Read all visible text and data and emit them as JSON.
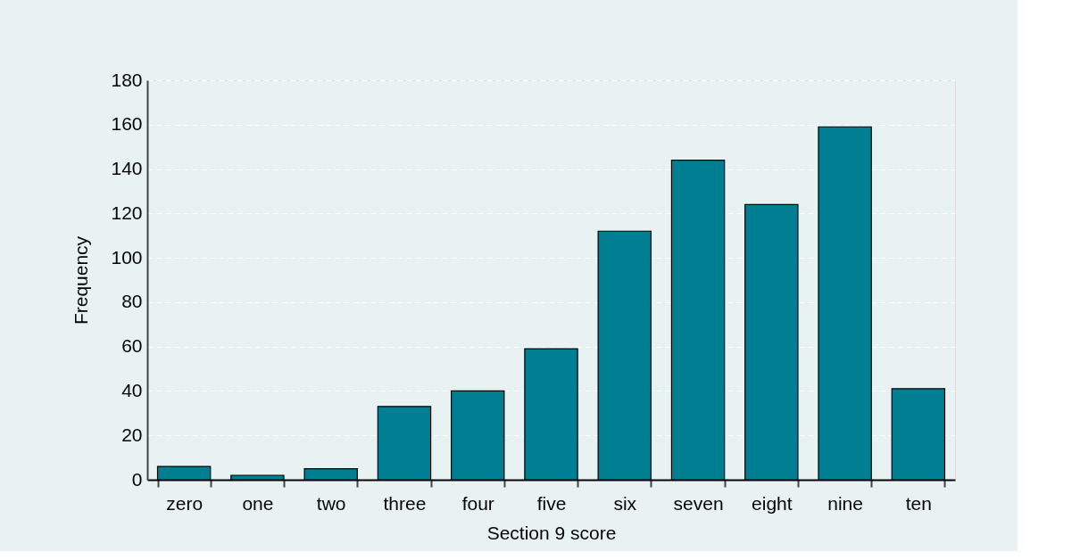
{
  "chart_data": {
    "type": "bar",
    "xlabel": "Section 9 score",
    "ylabel": "Frequency",
    "categories": [
      "zero",
      "one",
      "two",
      "three",
      "four",
      "five",
      "six",
      "seven",
      "eight",
      "nine",
      "ten"
    ],
    "values": [
      6,
      2,
      5,
      33,
      40,
      59,
      112,
      144,
      124,
      159,
      41
    ],
    "color": "#007f93",
    "ylim": [
      0,
      180
    ],
    "yticks": [
      0,
      20,
      40,
      60,
      80,
      100,
      120,
      140,
      160,
      180
    ],
    "grid": "y"
  }
}
